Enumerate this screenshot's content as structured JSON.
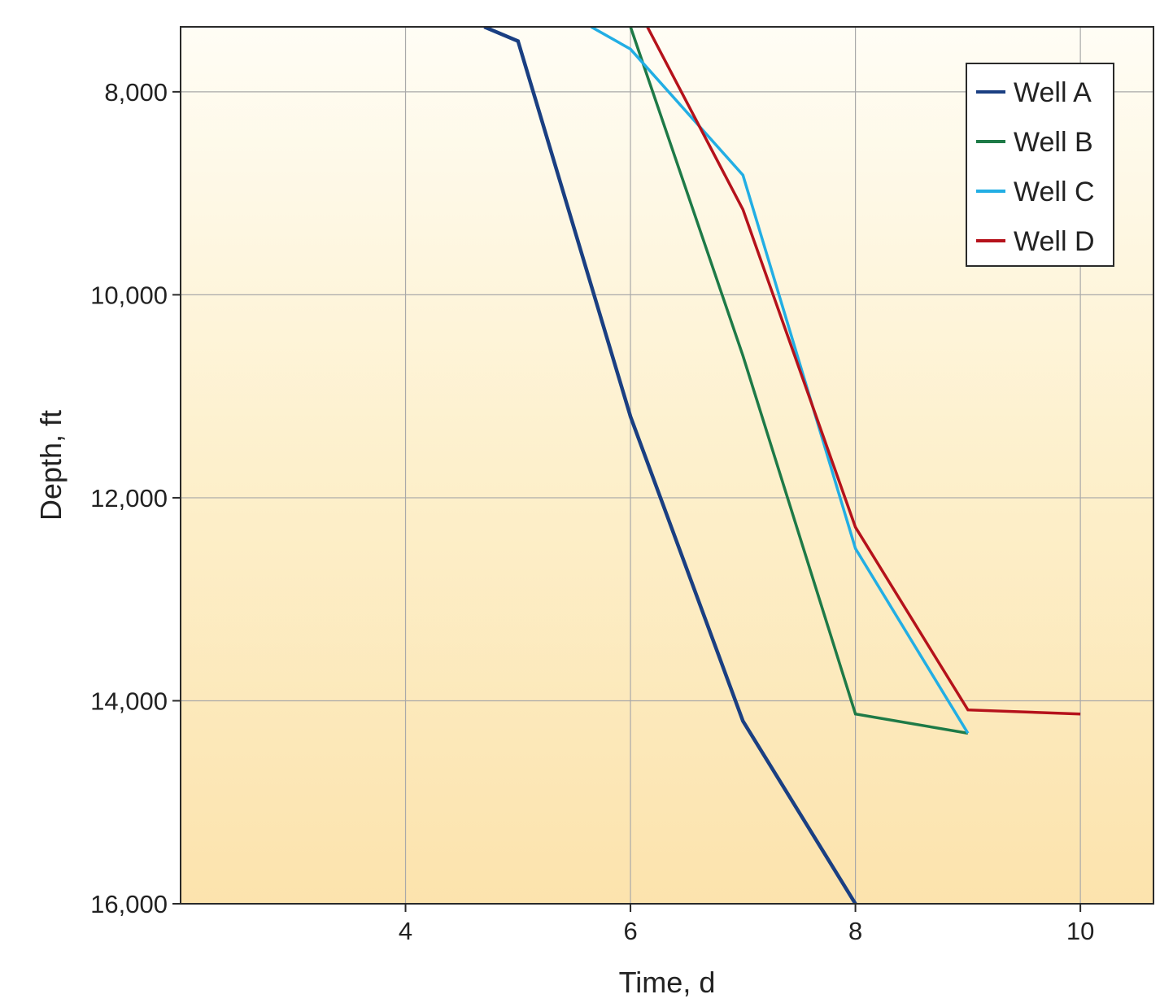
{
  "chart_data": {
    "type": "line",
    "xlabel": "Time, d",
    "ylabel": "Depth, ft",
    "xlim": [
      2.0,
      10.65
    ],
    "ylim": [
      7360,
      16000
    ],
    "y_inverted": true,
    "x_ticks": [
      4,
      6,
      8,
      10
    ],
    "x_tick_labels": [
      "4",
      "6",
      "8",
      "10"
    ],
    "y_ticks": [
      8000,
      10000,
      12000,
      14000,
      16000
    ],
    "y_tick_labels": [
      "8,000",
      "10,000",
      "12,000",
      "14,000",
      "16,000"
    ],
    "grid": true,
    "legend_position": "top-right",
    "background": "gradient light cream to tan (top to bottom)",
    "series": [
      {
        "name": "Well A",
        "color": "#1a3f82",
        "points": [
          [
            4.7,
            7360
          ],
          [
            5.0,
            7500
          ],
          [
            6.0,
            11200
          ],
          [
            7.0,
            14200
          ],
          [
            8.0,
            16000
          ]
        ]
      },
      {
        "name": "Well B",
        "color": "#1e7a47",
        "points": [
          [
            6.0,
            7360
          ],
          [
            7.0,
            10600
          ],
          [
            8.0,
            14130
          ],
          [
            9.0,
            14320
          ]
        ]
      },
      {
        "name": "Well C",
        "color": "#22aee4",
        "points": [
          [
            5.65,
            7360
          ],
          [
            6.0,
            7580
          ],
          [
            7.0,
            8820
          ],
          [
            8.0,
            12500
          ],
          [
            9.0,
            14320
          ]
        ]
      },
      {
        "name": "Well D",
        "color": "#b5121b",
        "points": [
          [
            6.15,
            7360
          ],
          [
            7.0,
            9160
          ],
          [
            8.0,
            12290
          ],
          [
            9.0,
            14090
          ],
          [
            10.0,
            14130
          ]
        ]
      }
    ]
  }
}
